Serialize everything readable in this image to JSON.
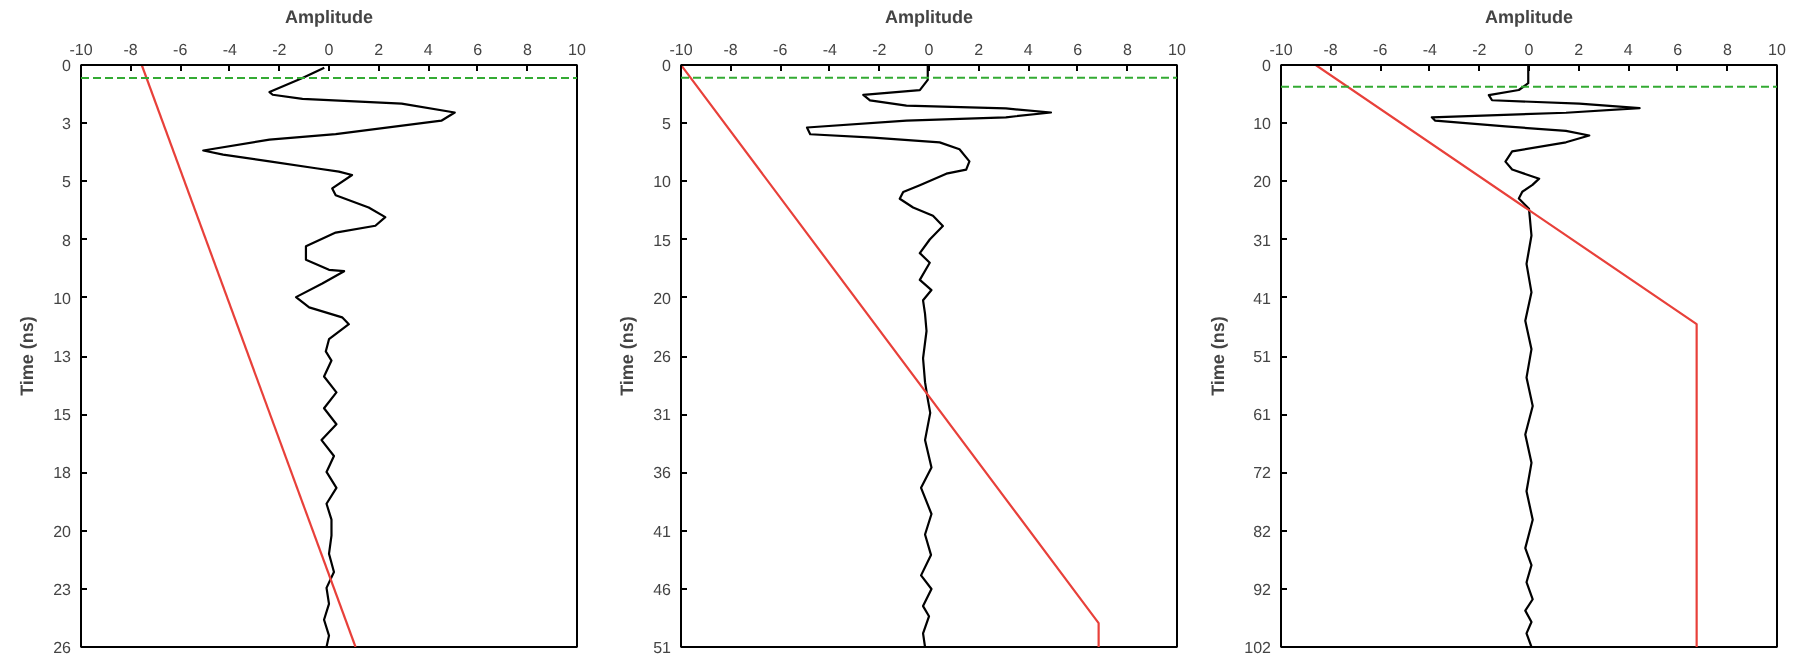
{
  "chart_data": [
    {
      "type": "line",
      "xlabel": "Amplitude",
      "ylabel": "Time (ns)",
      "xlim": [
        -10,
        10
      ],
      "xticks": [
        -10,
        -8,
        -6,
        -4,
        -2,
        0,
        2,
        4,
        6,
        8,
        10
      ],
      "ylim": [
        25.6,
        0
      ],
      "yticks": [
        0,
        {
          "value": 2.56,
          "label": "3"
        },
        {
          "value": 5.12,
          "label": "5"
        },
        {
          "value": 7.68,
          "label": "8"
        },
        {
          "value": 10.24,
          "label": "10"
        },
        {
          "value": 12.8,
          "label": "13"
        },
        {
          "value": 15.36,
          "label": "15"
        },
        {
          "value": 17.92,
          "label": "18"
        },
        {
          "value": 20.48,
          "label": "20"
        },
        {
          "value": 23.04,
          "label": "23"
        },
        {
          "value": 25.6,
          "label": "26"
        }
      ],
      "grid": false,
      "line_style": "solid",
      "series": [
        {
          "color": "#000000",
          "x": [
            -0.19,
            -1.07,
            -2.4,
            -2.27,
            -1.07,
            2.93,
            5.07,
            4.53,
            0.27,
            -2.4,
            -5.07,
            -4.27,
            -2.4,
            -0.53,
            0.4,
            0.93,
            0.13,
            0.27,
            1.6,
            2.27,
            1.87,
            0.27,
            -0.93,
            -0.93,
            0.0,
            0.61,
            -0.27,
            -1.33,
            -0.8,
            0.53,
            0.8,
            0.0,
            -0.13,
            0.1,
            -0.2,
            0.3,
            -0.2,
            0.3,
            -0.3,
            0.2,
            -0.1,
            0.3,
            -0.1,
            0.1,
            0.1,
            0.0,
            0.2,
            -0.1,
            0.0,
            -0.2,
            0.0,
            -0.1
          ],
          "values": [
            0.12,
            0.57,
            1.19,
            1.31,
            1.49,
            1.7,
            2.09,
            2.45,
            3.04,
            3.28,
            3.76,
            3.94,
            4.24,
            4.54,
            4.69,
            4.84,
            5.43,
            5.73,
            6.27,
            6.69,
            7.07,
            7.37,
            7.97,
            8.57,
            9.01,
            9.07,
            9.61,
            10.21,
            10.66,
            11.1,
            11.4,
            12.06,
            12.6,
            13.0,
            13.7,
            14.4,
            15.1,
            15.8,
            16.5,
            17.2,
            17.9,
            18.6,
            19.3,
            20.0,
            20.7,
            21.5,
            22.3,
            23.0,
            23.7,
            24.4,
            25.1,
            25.6
          ]
        },
        {
          "color": "#e8403a",
          "x": [
            -7.55,
            1.07
          ],
          "values": [
            0,
            25.6
          ]
        }
      ],
      "ref_lines": [
        {
          "axis": "y",
          "value": 0.57,
          "color": "#33aa33",
          "line_style": "dashed"
        }
      ]
    },
    {
      "type": "line",
      "xlabel": "Amplitude",
      "ylabel": "Time (ns)",
      "xlim": [
        -10,
        10
      ],
      "xticks": [
        -10,
        -8,
        -6,
        -4,
        -2,
        0,
        2,
        4,
        6,
        8,
        10
      ],
      "ylim": [
        51.2,
        0
      ],
      "yticks": [
        0,
        {
          "value": 5.12,
          "label": "5"
        },
        {
          "value": 10.24,
          "label": "10"
        },
        {
          "value": 15.36,
          "label": "15"
        },
        {
          "value": 20.48,
          "label": "20"
        },
        {
          "value": 25.6,
          "label": "26"
        },
        {
          "value": 30.72,
          "label": "31"
        },
        {
          "value": 35.84,
          "label": "36"
        },
        {
          "value": 40.96,
          "label": "41"
        },
        {
          "value": 46.08,
          "label": "46"
        },
        {
          "value": 51.2,
          "label": "51"
        }
      ],
      "grid": false,
      "line_style": "solid",
      "series": [
        {
          "color": "#000000",
          "x": [
            -0.05,
            -0.05,
            -0.37,
            -2.65,
            -2.38,
            -0.91,
            3.1,
            4.92,
            3.1,
            -0.91,
            -4.92,
            -4.79,
            -2.25,
            0.43,
            1.23,
            1.63,
            1.5,
            0.7,
            -0.37,
            -1.04,
            -1.18,
            -0.64,
            0.16,
            0.56,
            0.03,
            -0.37,
            0.03,
            -0.37,
            0.1,
            -0.24,
            -0.16,
            -0.1,
            -0.24,
            -0.16,
            -0.05,
            0.05,
            -0.16,
            0.1,
            -0.32,
            0.1,
            -0.16,
            0.08,
            -0.32,
            0.1,
            -0.24,
            0.0,
            -0.24,
            -0.16
          ],
          "values": [
            0,
            1.31,
            2.21,
            2.63,
            3.11,
            3.58,
            3.82,
            4.18,
            4.6,
            4.9,
            5.5,
            6.09,
            6.39,
            6.81,
            7.41,
            8.48,
            9.2,
            9.56,
            10.57,
            11.17,
            11.77,
            12.54,
            13.26,
            14.16,
            15.35,
            16.55,
            17.4,
            18.9,
            19.8,
            20.7,
            21.9,
            23.4,
            25.8,
            27.9,
            29.4,
            30.6,
            33.0,
            35.4,
            37.2,
            39.5,
            41.3,
            43.1,
            44.9,
            46.1,
            47.6,
            48.5,
            50.0,
            51.2
          ]
        },
        {
          "color": "#e8403a",
          "x": [
            -10,
            6.84,
            6.84
          ],
          "values": [
            0,
            49.1,
            51.2
          ]
        }
      ],
      "ref_lines": [
        {
          "axis": "y",
          "value": 1.13,
          "color": "#33aa33",
          "line_style": "dashed"
        }
      ]
    },
    {
      "type": "line",
      "xlabel": "Amplitude",
      "ylabel": "Time (ns)",
      "xlim": [
        -10,
        10
      ],
      "xticks": [
        -10,
        -8,
        -6,
        -4,
        -2,
        0,
        2,
        4,
        6,
        8,
        10
      ],
      "ylim": [
        102.4,
        0
      ],
      "yticks": [
        0,
        {
          "value": 10.24,
          "label": "10"
        },
        {
          "value": 20.48,
          "label": "20"
        },
        {
          "value": 30.72,
          "label": "31"
        },
        {
          "value": 40.96,
          "label": "41"
        },
        {
          "value": 51.2,
          "label": "51"
        },
        {
          "value": 61.44,
          "label": "61"
        },
        {
          "value": 71.68,
          "label": "72"
        },
        {
          "value": 81.92,
          "label": "82"
        },
        {
          "value": 92.16,
          "label": "92"
        },
        {
          "value": 102.4,
          "label": "102"
        }
      ],
      "grid": false,
      "line_style": "solid",
      "series": [
        {
          "color": "#000000",
          "x": [
            -0.03,
            -0.03,
            -0.41,
            -1.62,
            -1.49,
            2.03,
            4.46,
            1.49,
            -3.92,
            -3.78,
            -0.95,
            1.49,
            2.43,
            1.49,
            -0.68,
            -0.95,
            -0.68,
            0.41,
            0.14,
            -0.27,
            -0.41,
            0.0,
            0.1,
            -0.1,
            0.1,
            -0.15,
            0.1,
            -0.1,
            0.15,
            -0.15,
            0.1,
            -0.1,
            0.15,
            -0.15,
            0.1,
            -0.1,
            0.15,
            -0.15,
            0.1,
            -0.1,
            0.1
          ],
          "values": [
            0,
            3.2,
            4.4,
            5.3,
            6.2,
            6.8,
            7.6,
            8.4,
            9.2,
            9.8,
            10.8,
            11.6,
            12.4,
            13.6,
            15.2,
            17.0,
            18.4,
            20.0,
            21.1,
            22.3,
            23.5,
            25.3,
            30.0,
            35.0,
            40.0,
            45.0,
            50.0,
            55.0,
            60.0,
            65.0,
            70.0,
            75.0,
            80.0,
            85.0,
            88.0,
            91.0,
            94.0,
            96.0,
            98.0,
            100.0,
            102.4
          ]
        },
        {
          "color": "#e8403a",
          "x": [
            -8.6,
            6.76,
            6.76
          ],
          "values": [
            0,
            45.6,
            102.4
          ]
        }
      ],
      "ref_lines": [
        {
          "axis": "y",
          "value": 3.82,
          "color": "#33aa33",
          "line_style": "dashed"
        }
      ]
    }
  ]
}
